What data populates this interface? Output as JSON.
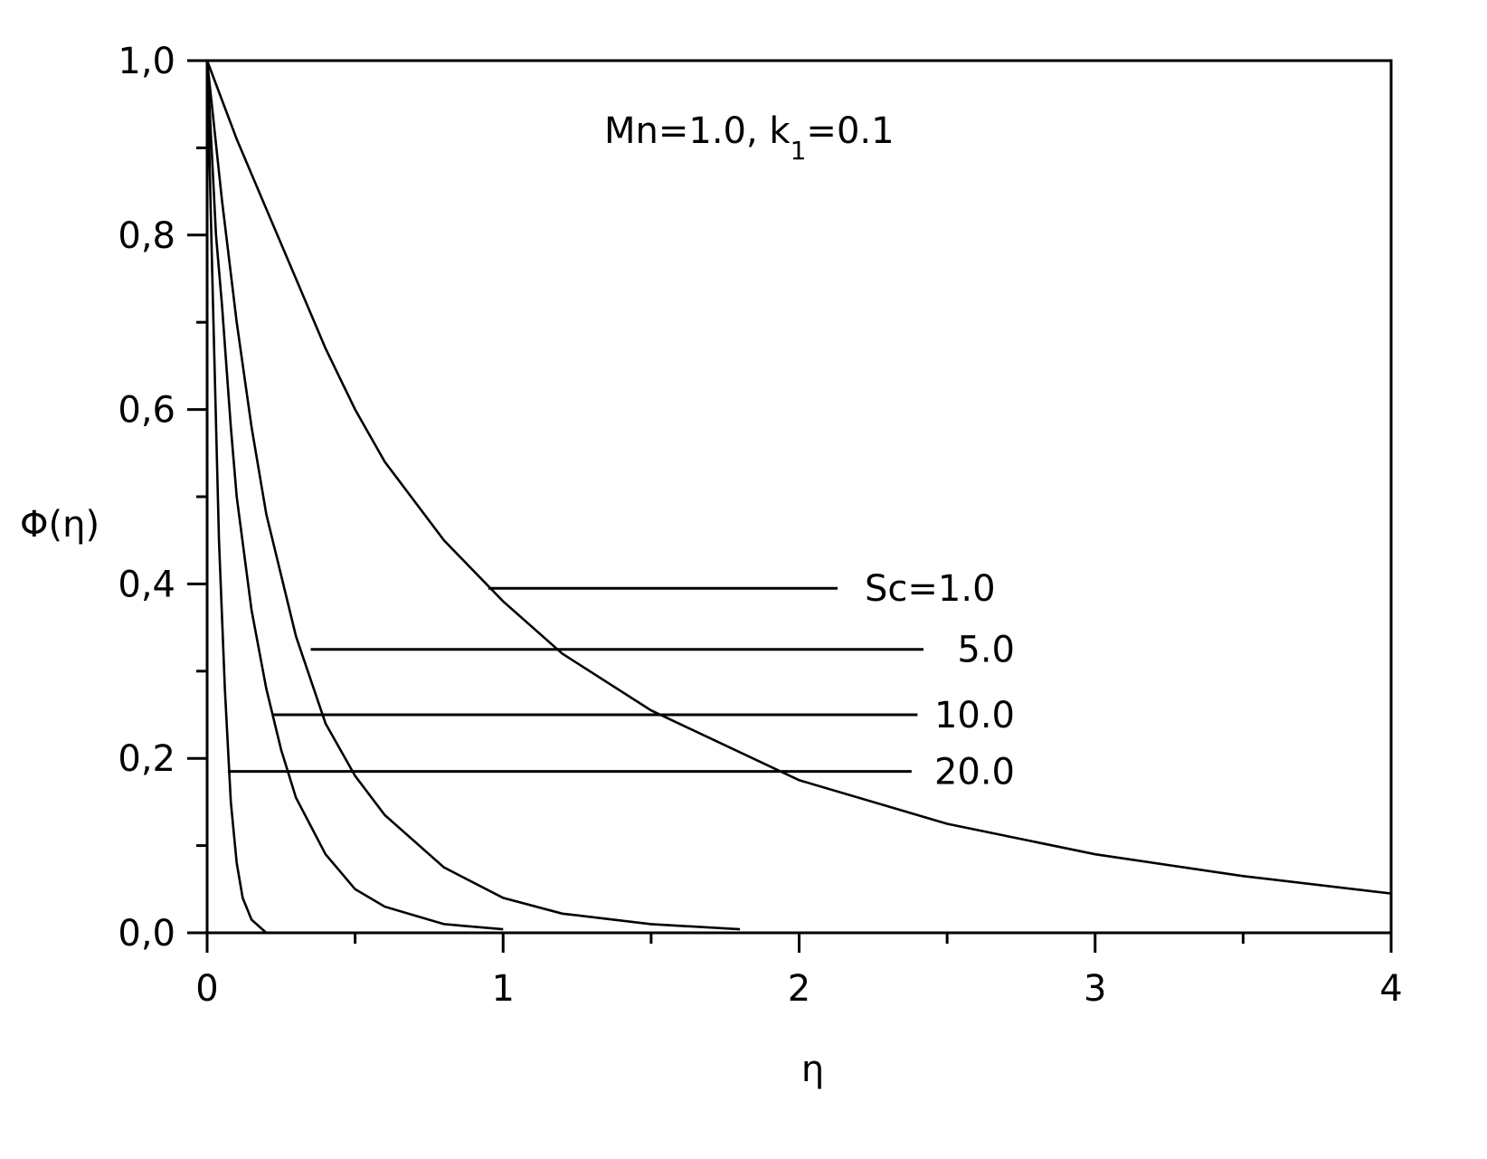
{
  "chart_data": {
    "type": "line",
    "xlabel": "η",
    "ylabel": "Φ(η)",
    "xlim": [
      0,
      4
    ],
    "ylim": [
      0,
      1
    ],
    "x_ticks": [
      0,
      1,
      2,
      3,
      4
    ],
    "x_tick_labels": [
      "0",
      "1",
      "2",
      "3",
      "4"
    ],
    "y_ticks": [
      0,
      0.2,
      0.4,
      0.6,
      0.8,
      1.0
    ],
    "y_tick_labels": [
      "0,0",
      "0,2",
      "0,4",
      "0,6",
      "0,8",
      "1,0"
    ],
    "grid": false,
    "annotation": {
      "prefix": "Mn=1.0, k",
      "subscript": "1",
      "suffix": "=0.1"
    },
    "series": [
      {
        "label": "Sc=1.0",
        "x": [
          0,
          0.1,
          0.2,
          0.3,
          0.4,
          0.5,
          0.6,
          0.8,
          1.0,
          1.2,
          1.5,
          2.0,
          2.5,
          3.0,
          3.5,
          4.0
        ],
        "y": [
          1.0,
          0.91,
          0.83,
          0.75,
          0.67,
          0.6,
          0.54,
          0.45,
          0.38,
          0.32,
          0.255,
          0.175,
          0.125,
          0.09,
          0.065,
          0.045
        ],
        "leader": {
          "x_from": 0.95,
          "x_to": 2.13,
          "y": 0.395
        }
      },
      {
        "label": "5.0",
        "x": [
          0,
          0.05,
          0.1,
          0.15,
          0.2,
          0.3,
          0.4,
          0.5,
          0.6,
          0.8,
          1.0,
          1.2,
          1.5,
          1.8
        ],
        "y": [
          1.0,
          0.84,
          0.7,
          0.58,
          0.48,
          0.34,
          0.24,
          0.18,
          0.135,
          0.075,
          0.04,
          0.022,
          0.01,
          0.004
        ],
        "leader": {
          "x_from": 0.35,
          "x_to": 2.42,
          "y": 0.325
        }
      },
      {
        "label": "10.0",
        "x": [
          0,
          0.03,
          0.05,
          0.08,
          0.1,
          0.15,
          0.2,
          0.25,
          0.3,
          0.4,
          0.5,
          0.6,
          0.8,
          1.0
        ],
        "y": [
          1.0,
          0.8,
          0.72,
          0.58,
          0.5,
          0.37,
          0.28,
          0.21,
          0.155,
          0.09,
          0.05,
          0.03,
          0.01,
          0.004
        ],
        "leader": {
          "x_from": 0.22,
          "x_to": 2.4,
          "y": 0.25
        }
      },
      {
        "label": "20.0",
        "x": [
          0,
          0.02,
          0.04,
          0.06,
          0.08,
          0.1,
          0.12,
          0.15,
          0.2
        ],
        "y": [
          1.0,
          0.72,
          0.45,
          0.28,
          0.15,
          0.08,
          0.04,
          0.015,
          0.0
        ],
        "leader": {
          "x_from": 0.07,
          "x_to": 2.38,
          "y": 0.185
        }
      }
    ]
  }
}
